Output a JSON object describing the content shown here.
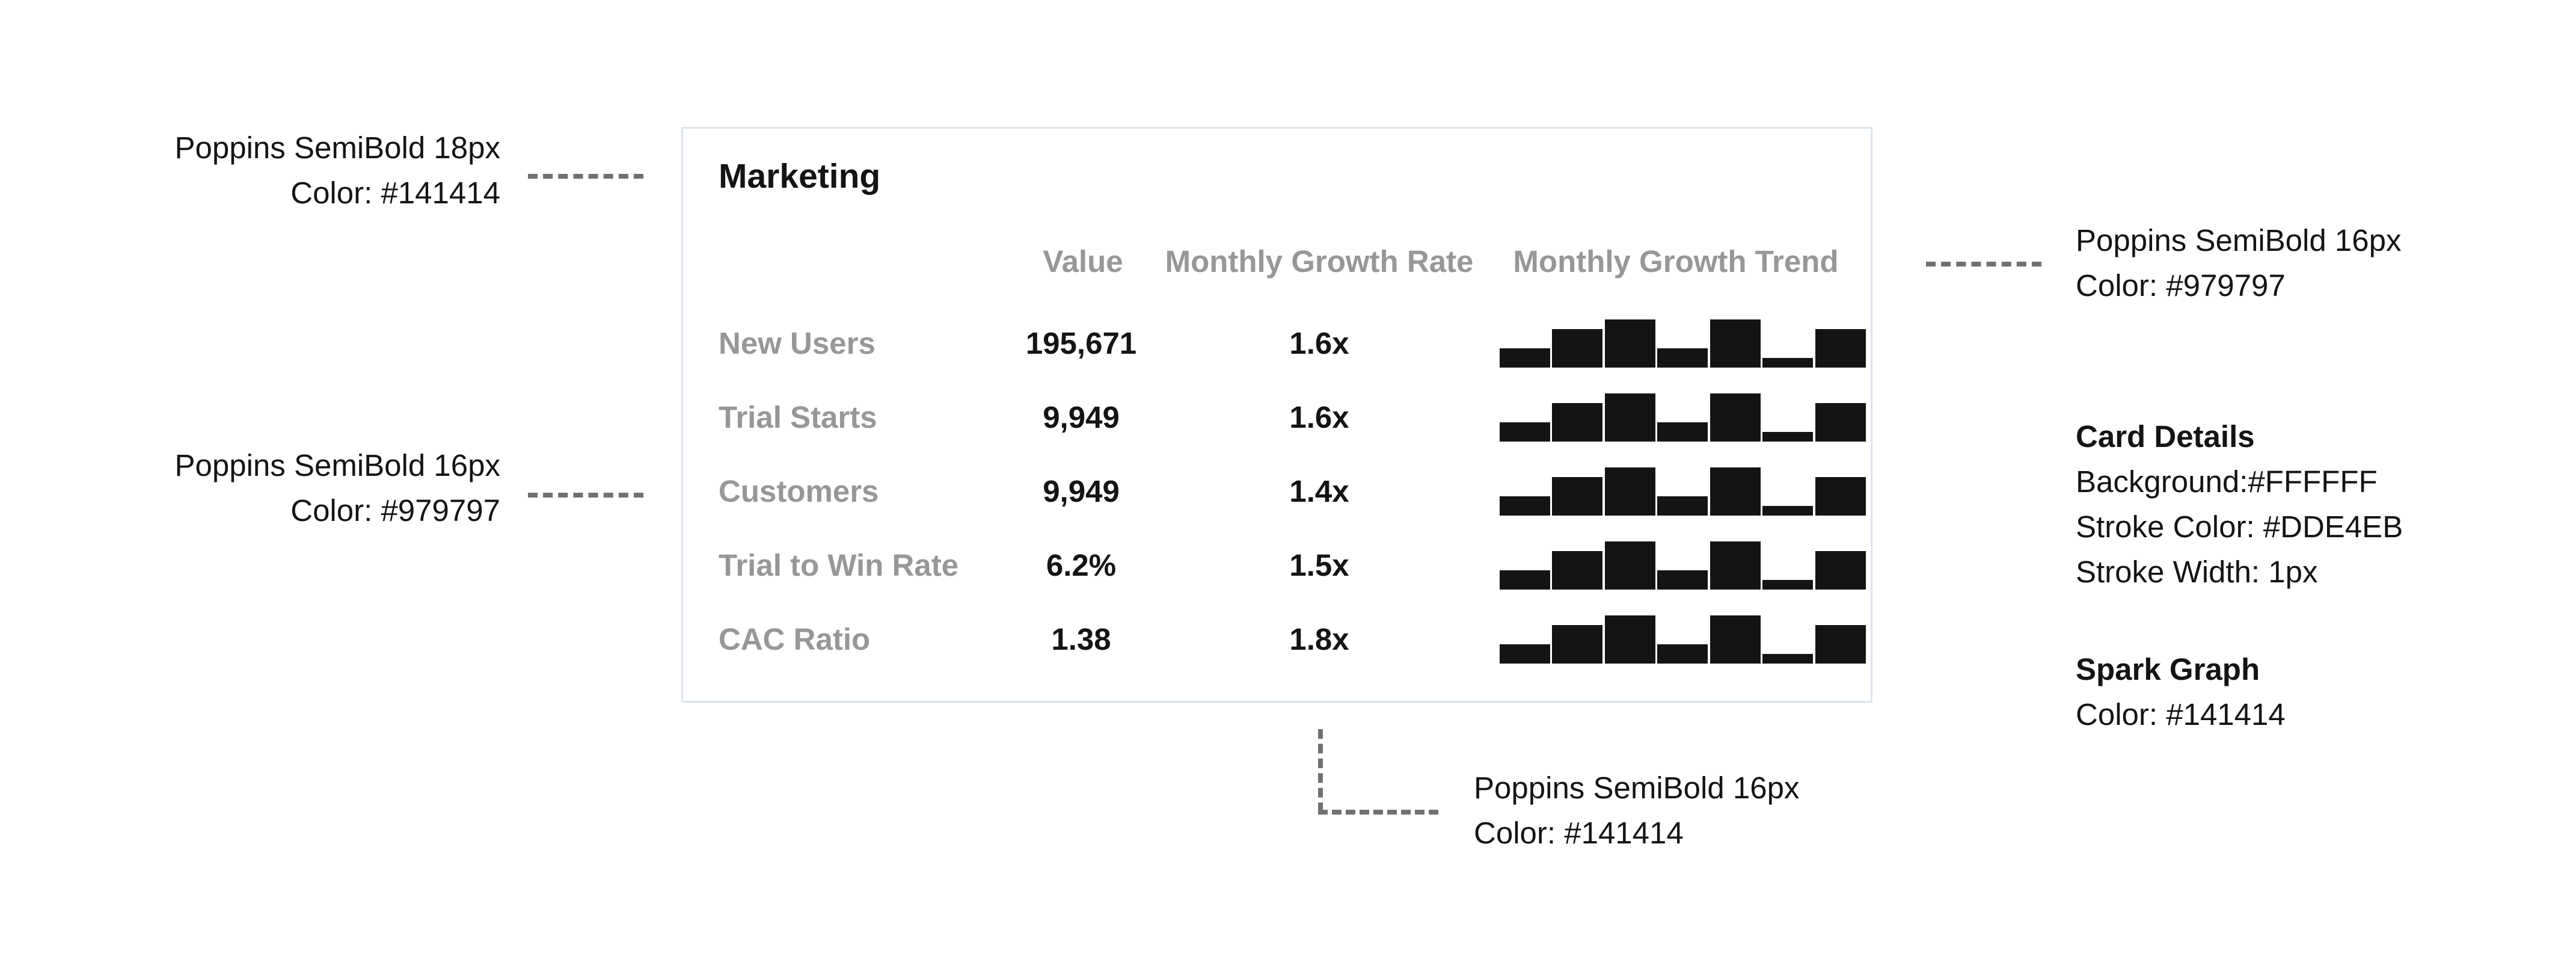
{
  "annotations": {
    "title_note": {
      "line1": "Poppins SemiBold 18px",
      "line2": "Color: #141414"
    },
    "label_note": {
      "line1": "Poppins SemiBold 16px",
      "line2": "Color: #979797"
    },
    "header_note": {
      "line1": "Poppins SemiBold 16px",
      "line2": "Color: #979797"
    },
    "value_note": {
      "line1": "Poppins SemiBold 16px",
      "line2": "Color: #141414"
    },
    "card_details": {
      "title": "Card Details",
      "background": "Background:#FFFFFF",
      "stroke_color": "Stroke Color: #DDE4EB",
      "stroke_width": "Stroke Width: 1px"
    },
    "spark_graph": {
      "title": "Spark Graph",
      "color": "Color: #141414"
    }
  },
  "card": {
    "title": "Marketing",
    "columns": {
      "value": "Value",
      "growth_rate": "Monthly Growth Rate",
      "growth_trend": "Monthly Growth Trend"
    },
    "rows": [
      {
        "label": "New Users",
        "value": "195,671",
        "growth_rate": "1.6x",
        "trend": [
          0.4,
          0.8,
          1.0,
          0.4,
          1.0,
          0.2,
          0.8
        ]
      },
      {
        "label": "Trial Starts",
        "value": "9,949",
        "growth_rate": "1.6x",
        "trend": [
          0.4,
          0.8,
          1.0,
          0.4,
          1.0,
          0.2,
          0.8
        ]
      },
      {
        "label": "Customers",
        "value": "9,949",
        "growth_rate": "1.4x",
        "trend": [
          0.4,
          0.8,
          1.0,
          0.4,
          1.0,
          0.2,
          0.8
        ]
      },
      {
        "label": "Trial to Win Rate",
        "value": "6.2%",
        "growth_rate": "1.5x",
        "trend": [
          0.4,
          0.8,
          1.0,
          0.4,
          1.0,
          0.2,
          0.8
        ]
      },
      {
        "label": "CAC Ratio",
        "value": "1.38",
        "growth_rate": "1.8x",
        "trend": [
          0.4,
          0.8,
          1.0,
          0.4,
          1.0,
          0.2,
          0.8
        ]
      }
    ]
  },
  "colors": {
    "text_primary": "#141414",
    "text_secondary": "#979797",
    "card_background": "#FFFFFF",
    "card_stroke": "#DDE4EB",
    "spark": "#141414"
  }
}
